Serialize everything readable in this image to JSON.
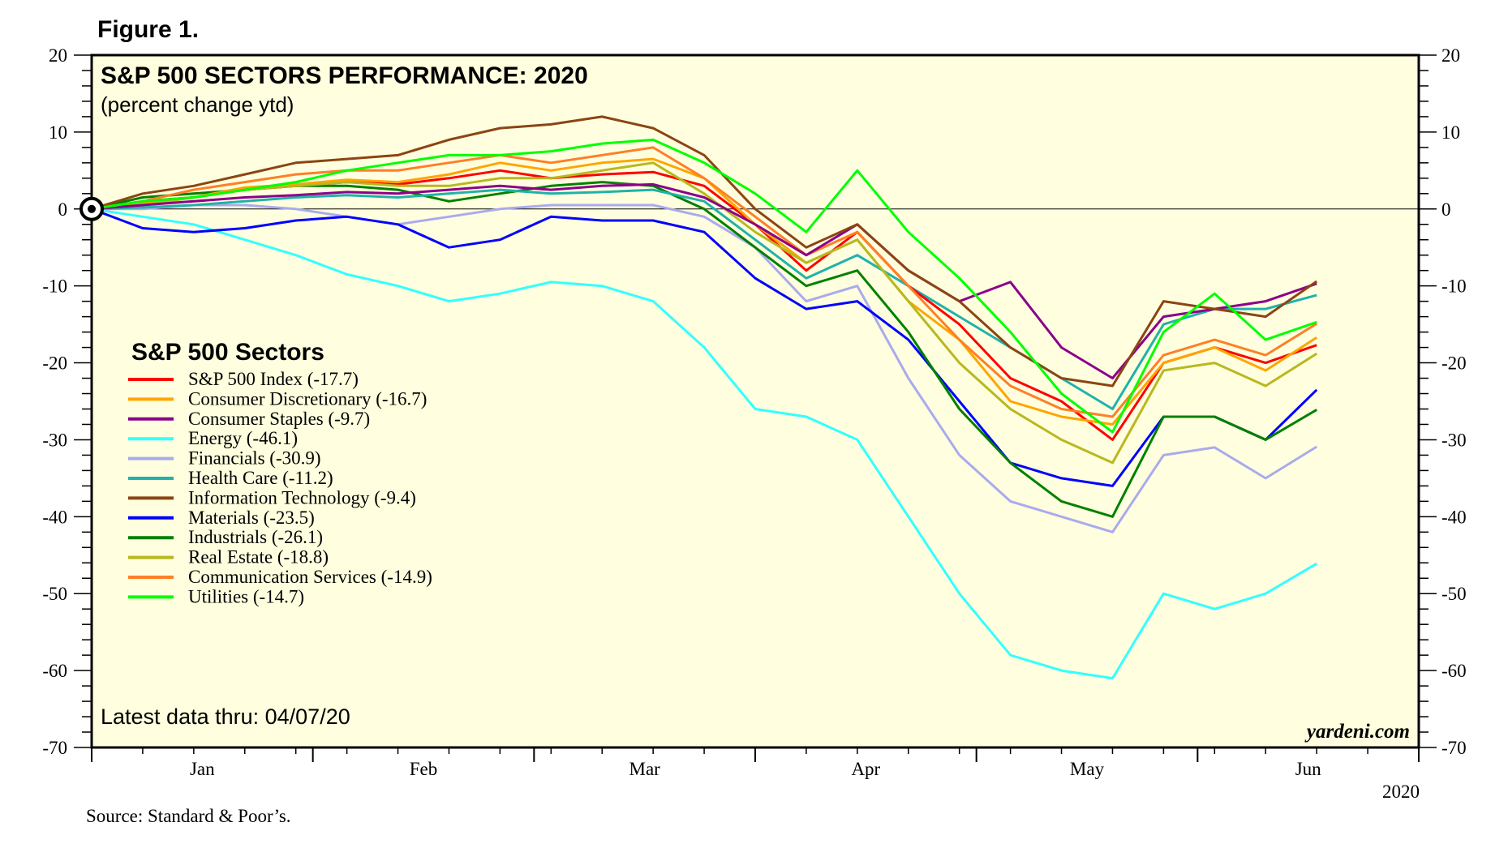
{
  "figure_label": "Figure 1.",
  "source": "Source: Standard & Poor’s.",
  "chart_data": {
    "type": "line",
    "title": "S&P 500 SECTORS PERFORMANCE: 2020",
    "subtitle": "(percent change ytd)",
    "legend_title": "S&P 500 Sectors",
    "legend_position": "middle-left",
    "latest_note": "Latest data thru: 04/07/20",
    "brand": "yardeni.com",
    "year_label": "2020",
    "xlabel": "",
    "ylabel": "",
    "ylim": [
      -70,
      20
    ],
    "y_ticks": [
      20,
      10,
      0,
      -10,
      -20,
      -30,
      -40,
      -50,
      -60,
      -70
    ],
    "x_month_labels": [
      "Jan",
      "Feb",
      "Mar",
      "Apr",
      "May",
      "Jun"
    ],
    "x_axis_weeks": 26,
    "background": "#ffffdf",
    "series": [
      {
        "name": "S&P 500 Index (-17.7)",
        "color": "#ff0000",
        "points": [
          [
            0,
            0
          ],
          [
            1,
            1
          ],
          [
            2,
            1.5
          ],
          [
            3,
            2.5
          ],
          [
            4,
            3
          ],
          [
            5,
            3.5
          ],
          [
            6,
            3.2
          ],
          [
            7,
            4
          ],
          [
            8,
            5
          ],
          [
            9,
            4
          ],
          [
            10,
            4.5
          ],
          [
            11,
            4.8
          ],
          [
            12,
            3
          ],
          [
            13,
            -2
          ],
          [
            14,
            -8
          ],
          [
            15,
            -3
          ],
          [
            16,
            -10
          ],
          [
            17,
            -15
          ],
          [
            18,
            -22
          ],
          [
            19,
            -25
          ],
          [
            20,
            -30
          ],
          [
            21,
            -20
          ],
          [
            22,
            -18
          ],
          [
            23,
            -20
          ],
          [
            24,
            -17.7
          ]
        ]
      },
      {
        "name": "Consumer Discretionary (-16.7)",
        "color": "#ffa500",
        "points": [
          [
            0,
            0
          ],
          [
            1,
            0.8
          ],
          [
            2,
            1.5
          ],
          [
            3,
            2.8
          ],
          [
            4,
            3.2
          ],
          [
            5,
            3.8
          ],
          [
            6,
            3.5
          ],
          [
            7,
            4.5
          ],
          [
            8,
            6
          ],
          [
            9,
            5
          ],
          [
            10,
            6
          ],
          [
            11,
            6.5
          ],
          [
            12,
            4
          ],
          [
            13,
            -2
          ],
          [
            14,
            -7
          ],
          [
            15,
            -4
          ],
          [
            16,
            -12
          ],
          [
            17,
            -17
          ],
          [
            18,
            -25
          ],
          [
            19,
            -27
          ],
          [
            20,
            -28
          ],
          [
            21,
            -20
          ],
          [
            22,
            -18
          ],
          [
            23,
            -21
          ],
          [
            24,
            -16.7
          ]
        ]
      },
      {
        "name": "Consumer Staples (-9.7)",
        "color": "#8b008b",
        "points": [
          [
            0,
            0
          ],
          [
            1,
            0.5
          ],
          [
            2,
            1
          ],
          [
            3,
            1.5
          ],
          [
            4,
            1.8
          ],
          [
            5,
            2.2
          ],
          [
            6,
            2
          ],
          [
            7,
            2.5
          ],
          [
            8,
            3
          ],
          [
            9,
            2.5
          ],
          [
            10,
            3
          ],
          [
            11,
            3.2
          ],
          [
            12,
            1.5
          ],
          [
            13,
            -2
          ],
          [
            14,
            -6
          ],
          [
            15,
            -2
          ],
          [
            16,
            -8
          ],
          [
            17,
            -12
          ],
          [
            18,
            -9.5
          ],
          [
            19,
            -18
          ],
          [
            20,
            -22
          ],
          [
            21,
            -14
          ],
          [
            22,
            -13
          ],
          [
            23,
            -12
          ],
          [
            24,
            -9.7
          ]
        ]
      },
      {
        "name": "Energy (-46.1)",
        "color": "#33ffff",
        "points": [
          [
            0,
            0
          ],
          [
            1,
            -1
          ],
          [
            2,
            -2
          ],
          [
            3,
            -4
          ],
          [
            4,
            -6
          ],
          [
            5,
            -8.5
          ],
          [
            6,
            -10
          ],
          [
            7,
            -12
          ],
          [
            8,
            -11
          ],
          [
            9,
            -9.5
          ],
          [
            10,
            -10
          ],
          [
            11,
            -12
          ],
          [
            12,
            -18
          ],
          [
            13,
            -26
          ],
          [
            14,
            -27
          ],
          [
            15,
            -30
          ],
          [
            16,
            -40
          ],
          [
            17,
            -50
          ],
          [
            18,
            -58
          ],
          [
            19,
            -60
          ],
          [
            20,
            -61
          ],
          [
            21,
            -50
          ],
          [
            22,
            -52
          ],
          [
            23,
            -50
          ],
          [
            24,
            -46.1
          ]
        ]
      },
      {
        "name": "Financials (-30.9)",
        "color": "#aaaaee",
        "points": [
          [
            0,
            0
          ],
          [
            1,
            0
          ],
          [
            2,
            0.5
          ],
          [
            3,
            0.5
          ],
          [
            4,
            0
          ],
          [
            5,
            -1
          ],
          [
            6,
            -2
          ],
          [
            7,
            -1
          ],
          [
            8,
            0
          ],
          [
            9,
            0.5
          ],
          [
            10,
            0.5
          ],
          [
            11,
            0.5
          ],
          [
            12,
            -1
          ],
          [
            13,
            -5
          ],
          [
            14,
            -12
          ],
          [
            15,
            -10
          ],
          [
            16,
            -22
          ],
          [
            17,
            -32
          ],
          [
            18,
            -38
          ],
          [
            19,
            -40
          ],
          [
            20,
            -42
          ],
          [
            21,
            -32
          ],
          [
            22,
            -31
          ],
          [
            23,
            -35
          ],
          [
            24,
            -30.9
          ]
        ]
      },
      {
        "name": "Health Care (-11.2)",
        "color": "#20b2aa",
        "points": [
          [
            0,
            0
          ],
          [
            1,
            0.2
          ],
          [
            2,
            0.5
          ],
          [
            3,
            1
          ],
          [
            4,
            1.5
          ],
          [
            5,
            1.8
          ],
          [
            6,
            1.5
          ],
          [
            7,
            2
          ],
          [
            8,
            2.5
          ],
          [
            9,
            2
          ],
          [
            10,
            2.2
          ],
          [
            11,
            2.5
          ],
          [
            12,
            1
          ],
          [
            13,
            -4
          ],
          [
            14,
            -9
          ],
          [
            15,
            -6
          ],
          [
            16,
            -10
          ],
          [
            17,
            -14
          ],
          [
            18,
            -18
          ],
          [
            19,
            -22
          ],
          [
            20,
            -26
          ],
          [
            21,
            -15
          ],
          [
            22,
            -13
          ],
          [
            23,
            -13
          ],
          [
            24,
            -11.2
          ]
        ]
      },
      {
        "name": "Information Technology (-9.4)",
        "color": "#8b4513",
        "points": [
          [
            0,
            0
          ],
          [
            1,
            2
          ],
          [
            2,
            3
          ],
          [
            3,
            4.5
          ],
          [
            4,
            6
          ],
          [
            5,
            6.5
          ],
          [
            6,
            7
          ],
          [
            7,
            9
          ],
          [
            8,
            10.5
          ],
          [
            9,
            11
          ],
          [
            10,
            12
          ],
          [
            11,
            10.5
          ],
          [
            12,
            7
          ],
          [
            13,
            0
          ],
          [
            14,
            -5
          ],
          [
            15,
            -2
          ],
          [
            16,
            -8
          ],
          [
            17,
            -12
          ],
          [
            18,
            -18
          ],
          [
            19,
            -22
          ],
          [
            20,
            -23
          ],
          [
            21,
            -12
          ],
          [
            22,
            -13
          ],
          [
            23,
            -14
          ],
          [
            24,
            -9.4
          ]
        ]
      },
      {
        "name": "Materials (-23.5)",
        "color": "#0000ff",
        "points": [
          [
            0,
            0
          ],
          [
            1,
            -2.5
          ],
          [
            2,
            -3
          ],
          [
            3,
            -2.5
          ],
          [
            4,
            -1.5
          ],
          [
            5,
            -1
          ],
          [
            6,
            -2
          ],
          [
            7,
            -5
          ],
          [
            8,
            -4
          ],
          [
            9,
            -1
          ],
          [
            10,
            -1.5
          ],
          [
            11,
            -1.5
          ],
          [
            12,
            -3
          ],
          [
            13,
            -9
          ],
          [
            14,
            -13
          ],
          [
            15,
            -12
          ],
          [
            16,
            -17
          ],
          [
            17,
            -25
          ],
          [
            18,
            -33
          ],
          [
            19,
            -35
          ],
          [
            20,
            -36
          ],
          [
            21,
            -27
          ],
          [
            22,
            -27
          ],
          [
            23,
            -30
          ],
          [
            24,
            -23.5
          ]
        ]
      },
      {
        "name": "Industrials (-26.1)",
        "color": "#008000",
        "points": [
          [
            0,
            0
          ],
          [
            1,
            1.5
          ],
          [
            2,
            2
          ],
          [
            3,
            2.5
          ],
          [
            4,
            3
          ],
          [
            5,
            3
          ],
          [
            6,
            2.5
          ],
          [
            7,
            1
          ],
          [
            8,
            2
          ],
          [
            9,
            3
          ],
          [
            10,
            3.5
          ],
          [
            11,
            3
          ],
          [
            12,
            0
          ],
          [
            13,
            -5
          ],
          [
            14,
            -10
          ],
          [
            15,
            -8
          ],
          [
            16,
            -16
          ],
          [
            17,
            -26
          ],
          [
            18,
            -33
          ],
          [
            19,
            -38
          ],
          [
            20,
            -40
          ],
          [
            21,
            -27
          ],
          [
            22,
            -27
          ],
          [
            23,
            -30
          ],
          [
            24,
            -26.1
          ]
        ]
      },
      {
        "name": "Real Estate (-18.8)",
        "color": "#b8b820",
        "points": [
          [
            0,
            0
          ],
          [
            1,
            0.5
          ],
          [
            2,
            1.5
          ],
          [
            3,
            2.5
          ],
          [
            4,
            3
          ],
          [
            5,
            3.5
          ],
          [
            6,
            3
          ],
          [
            7,
            3
          ],
          [
            8,
            4
          ],
          [
            9,
            4
          ],
          [
            10,
            5
          ],
          [
            11,
            6
          ],
          [
            12,
            2
          ],
          [
            13,
            -3
          ],
          [
            14,
            -7
          ],
          [
            15,
            -4
          ],
          [
            16,
            -12
          ],
          [
            17,
            -20
          ],
          [
            18,
            -26
          ],
          [
            19,
            -30
          ],
          [
            20,
            -33
          ],
          [
            21,
            -21
          ],
          [
            22,
            -20
          ],
          [
            23,
            -23
          ],
          [
            24,
            -18.8
          ]
        ]
      },
      {
        "name": "Communication Services (-14.9)",
        "color": "#ff7f27",
        "points": [
          [
            0,
            0
          ],
          [
            1,
            1
          ],
          [
            2,
            2.5
          ],
          [
            3,
            3.5
          ],
          [
            4,
            4.5
          ],
          [
            5,
            5
          ],
          [
            6,
            5
          ],
          [
            7,
            6
          ],
          [
            8,
            7
          ],
          [
            9,
            6
          ],
          [
            10,
            7
          ],
          [
            11,
            8
          ],
          [
            12,
            4
          ],
          [
            13,
            -1
          ],
          [
            14,
            -6
          ],
          [
            15,
            -3
          ],
          [
            16,
            -10
          ],
          [
            17,
            -17
          ],
          [
            18,
            -23
          ],
          [
            19,
            -26
          ],
          [
            20,
            -27
          ],
          [
            21,
            -19
          ],
          [
            22,
            -17
          ],
          [
            23,
            -19
          ],
          [
            24,
            -14.9
          ]
        ]
      },
      {
        "name": "Utilities (-14.7)",
        "color": "#00ff00",
        "points": [
          [
            0,
            0
          ],
          [
            1,
            1
          ],
          [
            2,
            1.5
          ],
          [
            3,
            2.5
          ],
          [
            4,
            3.5
          ],
          [
            5,
            5
          ],
          [
            6,
            6
          ],
          [
            7,
            7
          ],
          [
            8,
            7
          ],
          [
            9,
            7.5
          ],
          [
            10,
            8.5
          ],
          [
            11,
            9
          ],
          [
            12,
            6
          ],
          [
            13,
            2
          ],
          [
            14,
            -3
          ],
          [
            15,
            5
          ],
          [
            16,
            -3
          ],
          [
            17,
            -9
          ],
          [
            18,
            -16
          ],
          [
            19,
            -24
          ],
          [
            20,
            -29
          ],
          [
            21,
            -16
          ],
          [
            22,
            -11
          ],
          [
            23,
            -17
          ],
          [
            24,
            -14.7
          ]
        ]
      }
    ]
  }
}
